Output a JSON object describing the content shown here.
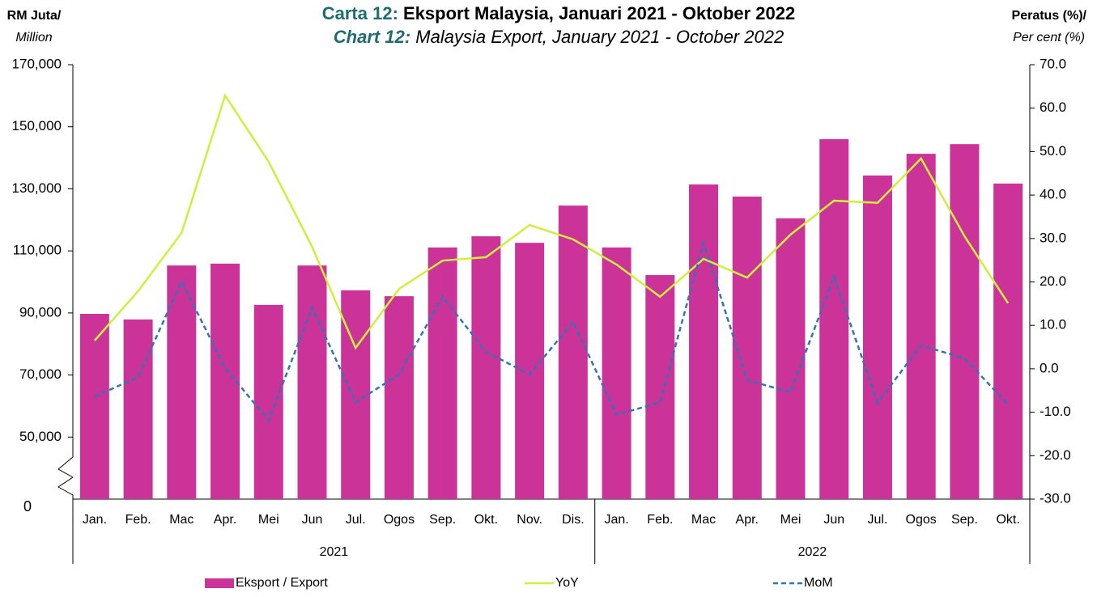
{
  "chart_data": {
    "type": "bar-line",
    "title_prefix": "Carta 12:",
    "title": "Eksport Malaysia, Januari 2021 - Oktober 2022",
    "subtitle_prefix": "Chart 12:",
    "subtitle": "Malaysia Export, January 2021 - October 2022",
    "ylabel": [
      "RM Juta/",
      "Million"
    ],
    "y2label": [
      "Peratus (%)/",
      "Per cent (%)"
    ],
    "axis_break_label": "0",
    "groups": [
      {
        "label": "2021",
        "categories": [
          "Jan.",
          "Feb.",
          "Mac",
          "Apr.",
          "Mei",
          "Jun",
          "Jul.",
          "Ogos",
          "Sep.",
          "Okt.",
          "Nov.",
          "Dis."
        ]
      },
      {
        "label": "2022",
        "categories": [
          "Jan.",
          "Feb.",
          "Mac",
          "Apr.",
          "Mei",
          "Jun",
          "Jul.",
          "Ogos",
          "Sep.",
          "Okt."
        ]
      }
    ],
    "ylim": [
      30000,
      170000
    ],
    "yticks": [
      {
        "value": 50000,
        "label": "50,000"
      },
      {
        "value": 70000,
        "label": "70,000"
      },
      {
        "value": 90000,
        "label": "90,000"
      },
      {
        "value": 110000,
        "label": "110,000"
      },
      {
        "value": 130000,
        "label": "130,000"
      },
      {
        "value": 150000,
        "label": "150,000"
      },
      {
        "value": 170000,
        "label": "170,000"
      }
    ],
    "y2lim": [
      -30,
      70
    ],
    "y2ticks": [
      {
        "value": -30,
        "label": "-30.0"
      },
      {
        "value": -20,
        "label": "-20.0"
      },
      {
        "value": -10,
        "label": "-10.0"
      },
      {
        "value": 0,
        "label": "0.0"
      },
      {
        "value": 10,
        "label": "10.0"
      },
      {
        "value": 20,
        "label": "20.0"
      },
      {
        "value": 30,
        "label": "30.0"
      },
      {
        "value": 40,
        "label": "40.0"
      },
      {
        "value": 50,
        "label": "50.0"
      },
      {
        "value": 60,
        "label": "60.0"
      },
      {
        "value": 70,
        "label": "70.0"
      }
    ],
    "legend": "bottom",
    "series": [
      {
        "name": "Eksport / Export",
        "kind": "bar",
        "color": "#cc3399",
        "values": [
          89700,
          87900,
          105300,
          105900,
          92600,
          105300,
          97300,
          95400,
          111100,
          114700,
          112600,
          124600,
          111100,
          102200,
          131400,
          127500,
          120500,
          146000,
          134300,
          141300,
          144400,
          131700
        ]
      },
      {
        "name": "YoY",
        "kind": "line",
        "axis": "y2",
        "color": "#ccf03c",
        "values": [
          6.5,
          17.9,
          31.3,
          62.9,
          47.7,
          28.1,
          4.8,
          18.4,
          24.9,
          25.7,
          33.1,
          29.8,
          24.0,
          16.6,
          25.3,
          21.0,
          30.9,
          38.7,
          38.2,
          48.4,
          30.5,
          15.1
        ]
      },
      {
        "name": "MoM",
        "kind": "line",
        "dashed": true,
        "axis": "y2",
        "color": "#2e75b6",
        "values": [
          -6.4,
          -1.9,
          20.1,
          0.2,
          -11.9,
          14.1,
          -7.7,
          -1.3,
          16.6,
          3.9,
          -1.3,
          10.8,
          -10.6,
          -7.7,
          29.0,
          -2.6,
          -5.4,
          21.2,
          -7.8,
          5.4,
          2.4,
          -8.2
        ]
      }
    ]
  }
}
